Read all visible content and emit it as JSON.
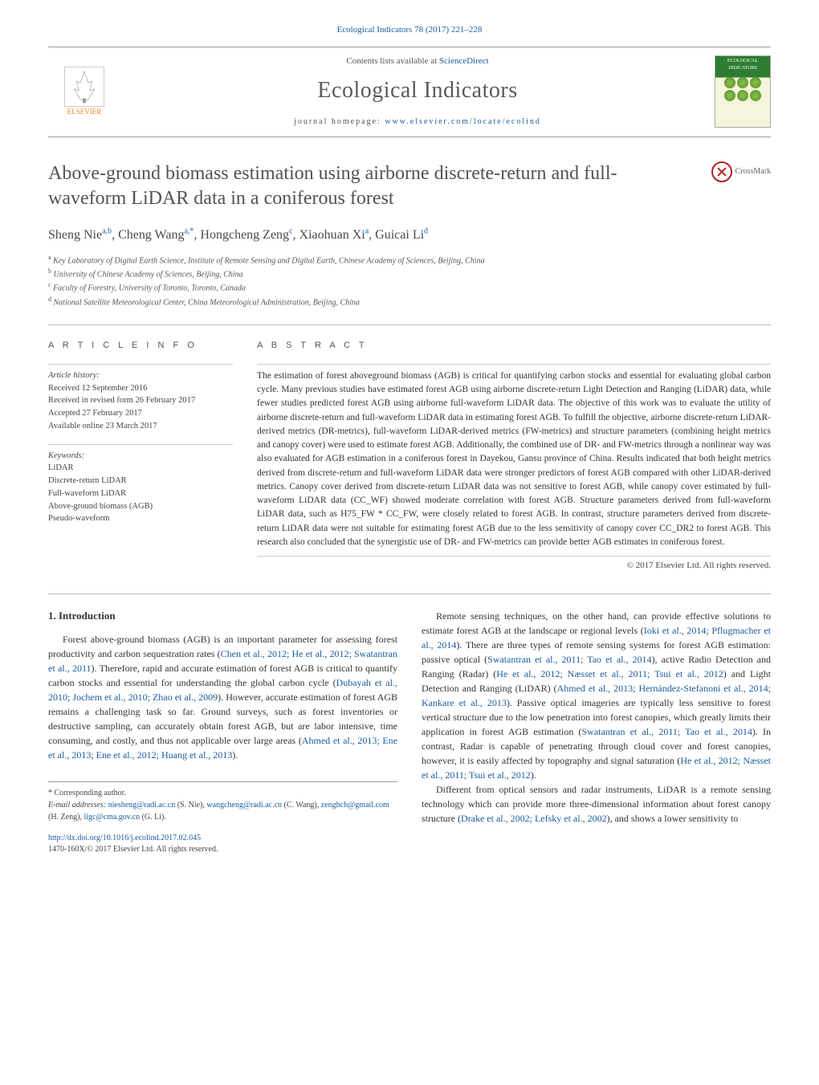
{
  "citation": "Ecological Indicators 78 (2017) 221–228",
  "header": {
    "contents_prefix": "Contents lists available at ",
    "contents_link": "ScienceDirect",
    "journal": "Ecological Indicators",
    "homepage_prefix": "journal homepage: ",
    "homepage_url": "www.elsevier.com/locate/ecolind",
    "publisher": "ELSEVIER",
    "cover_label": "ECOLOGICAL INDICATORS"
  },
  "title": "Above-ground biomass estimation using airborne discrete-return and full-waveform LiDAR data in a coniferous forest",
  "crossmark": "CrossMark",
  "authors_html": "Sheng Nie<sup>a,b</sup>, Cheng Wang<sup>a,*</sup>, Hongcheng Zeng<sup>c</sup>, Xiaohuan Xi<sup>a</sup>, Guicai Li<sup>d</sup>",
  "affiliations": [
    {
      "sup": "a",
      "text": "Key Laboratory of Digital Earth Science, Institute of Remote Sensing and Digital Earth, Chinese Academy of Sciences, Beijing, China"
    },
    {
      "sup": "b",
      "text": "University of Chinese Academy of Sciences, Beijing, China"
    },
    {
      "sup": "c",
      "text": "Faculty of Forestry, University of Toronto, Toronto, Canada"
    },
    {
      "sup": "d",
      "text": "National Satellite Meteorological Center, China Meteorological Administration, Beijing, China"
    }
  ],
  "article_info": {
    "heading": "a r t i c l e   i n f o",
    "history_label": "Article history:",
    "history": [
      "Received 12 September 2016",
      "Received in revised form 26 February 2017",
      "Accepted 27 February 2017",
      "Available online 23 March 2017"
    ],
    "keywords_label": "Keywords:",
    "keywords": [
      "LiDAR",
      "Discrete-return LiDAR",
      "Full-waveform LiDAR",
      "Above-ground biomass (AGB)",
      "Pseudo-waveform"
    ]
  },
  "abstract": {
    "heading": "a b s t r a c t",
    "text": "The estimation of forest aboveground biomass (AGB) is critical for quantifying carbon stocks and essential for evaluating global carbon cycle. Many previous studies have estimated forest AGB using airborne discrete-return Light Detection and Ranging (LiDAR) data, while fewer studies predicted forest AGB using airborne full-waveform LiDAR data. The objective of this work was to evaluate the utility of airborne discrete-return and full-waveform LiDAR data in estimating forest AGB. To fulfill the objective, airborne discrete-return LiDAR-derived metrics (DR-metrics), full-waveform LiDAR-derived metrics (FW-metrics) and structure parameters (combining height metrics and canopy cover) were used to estimate forest AGB. Additionally, the combined use of DR- and FW-metrics through a nonlinear way was also evaluated for AGB estimation in a coniferous forest in Dayekou, Gansu province of China. Results indicated that both height metrics derived from discrete-return and full-waveform LiDAR data were stronger predictors of forest AGB compared with other LiDAR-derived metrics. Canopy cover derived from discrete-return LiDAR data was not sensitive to forest AGB, while canopy cover estimated by full-waveform LiDAR data (CC_WF) showed moderate correlation with forest AGB. Structure parameters derived from full-waveform LiDAR data, such as H75_FW * CC_FW, were closely related to forest AGB. In contrast, structure parameters derived from discrete-return LiDAR data were not suitable for estimating forest AGB due to the less sensitivity of canopy cover CC_DR2 to forest AGB. This research also concluded that the synergistic use of DR- and FW-metrics can provide better AGB estimates in coniferous forest.",
    "copyright": "© 2017 Elsevier Ltd. All rights reserved."
  },
  "intro": {
    "heading": "1.  Introduction",
    "p1_a": "Forest above-ground biomass (AGB) is an important parameter for assessing forest productivity and carbon sequestration rates (",
    "p1_link1": "Chen et al., 2012; He et al., 2012; Swatantran et al., 2011",
    "p1_b": "). Therefore, rapid and accurate estimation of forest AGB is critical to quantify carbon stocks and essential for understanding the global carbon cycle (",
    "p1_link2": "Dubayah et al., 2010; Jochem et al., 2010; Zhao et al., 2009",
    "p1_c": "). However, accurate estimation of forest AGB remains a challenging task so far. Ground surveys, such as forest inventories or destructive sampling, can accurately obtain forest AGB, but are labor intensive, time consuming, and costly, and thus not applicable over large areas (",
    "p1_link3": "Ahmed et al., 2013; Ene et al., 2013; Ene et al., 2012; Huang et al., 2013",
    "p1_d": ").",
    "p2_a": "Remote sensing techniques, on the other hand, can provide effective solutions to estimate forest AGB at the landscape or regional levels (",
    "p2_link1": "Ioki et al., 2014; Pflugmacher et al., 2014",
    "p2_b": "). There are three types of remote sensing systems for forest AGB estimation: passive optical (",
    "p2_link2": "Swatantran et al., 2011; Tao et al., 2014",
    "p2_c": "), active Radio Detection and Ranging (Radar) (",
    "p2_link3": "He et al., 2012; Næsset et al., 2011; Tsui et al., 2012",
    "p2_d": ") and Light Detection and Ranging (LiDAR) (",
    "p2_link4": "Ahmed et al., 2013; Hernández-Stefanoni et al., 2014; Kankare et al., 2013",
    "p2_e": "). Passive optical imageries are typically less sensitive to forest vertical structure due to the low penetration into forest canopies, which greatly limits their application in forest AGB estimation (",
    "p2_link5": "Swatantran et al., 2011; Tao et al., 2014",
    "p2_f": "). In contrast, Radar is capable of penetrating through cloud cover and forest canopies, however, it is easily affected by topography and signal saturation (",
    "p2_link6": "He et al., 2012; Næsset et al., 2011; Tsui et al., 2012",
    "p2_g": ").",
    "p3_a": "Different from optical sensors and radar instruments, LiDAR is a remote sensing technology which can provide more three-dimensional information about forest canopy structure (",
    "p3_link1": "Drake et al., 2002; Lefsky et al., 2002",
    "p3_b": "), and shows a lower sensitivity to"
  },
  "footer": {
    "corr_label": "* Corresponding author.",
    "email_label": "E-mail addresses: ",
    "emails": [
      {
        "addr": "niesheng@radi.ac.cn",
        "who": " (S. Nie), "
      },
      {
        "addr": "wangcheng@radi.ac.cn",
        "who": " (C. Wang), "
      },
      {
        "addr": "zenghch@gmail.com",
        "who": " (H. Zeng), "
      },
      {
        "addr": "ligc@cma.gov.cn",
        "who": " (G. Li)."
      }
    ],
    "doi": "http://dx.doi.org/10.1016/j.ecolind.2017.02.045",
    "issn": "1470-160X/© 2017 Elsevier Ltd. All rights reserved."
  },
  "colors": {
    "link": "#1a5b9e",
    "text": "#333333",
    "muted": "#555555",
    "rule": "#bbbbbb",
    "elsevier": "#f58220",
    "cover_green": "#2e7d32"
  }
}
